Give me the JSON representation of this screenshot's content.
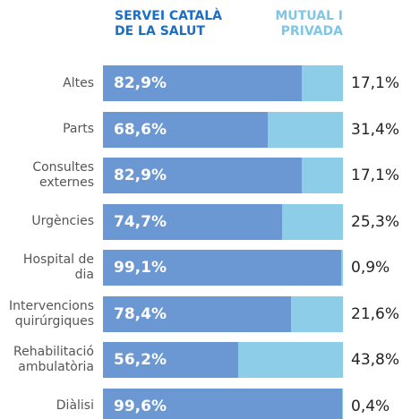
{
  "chart_data": {
    "type": "stacked-bar-horizontal",
    "categories": [
      "Altes",
      "Parts",
      "Consultes externes",
      "Urgències",
      "Hospital de dia",
      "Intervencions quirúrgiques",
      "Rehabilitació ambulatòria",
      "Diàlisi"
    ],
    "series": [
      {
        "name": "SERVEI CATALÀ DE LA SALUT",
        "color": "#6b98d2",
        "values": [
          82.9,
          68.6,
          82.9,
          74.7,
          99.1,
          78.4,
          56.2,
          99.6
        ],
        "value_labels": [
          "82,9%",
          "68,6%",
          "82,9%",
          "74,7%",
          "99,1%",
          "78,4%",
          "56,2%",
          "99,6%"
        ]
      },
      {
        "name": "MUTUAL I PRIVADA",
        "color": "#8ecde8",
        "values": [
          17.1,
          31.4,
          17.1,
          25.3,
          0.9,
          21.6,
          43.8,
          0.4
        ],
        "value_labels": [
          "17,1%",
          "31,4%",
          "17,1%",
          "25,3%",
          "0,9%",
          "21,6%",
          "43,8%",
          "0,4%"
        ]
      }
    ],
    "xlim": [
      0,
      100
    ]
  }
}
